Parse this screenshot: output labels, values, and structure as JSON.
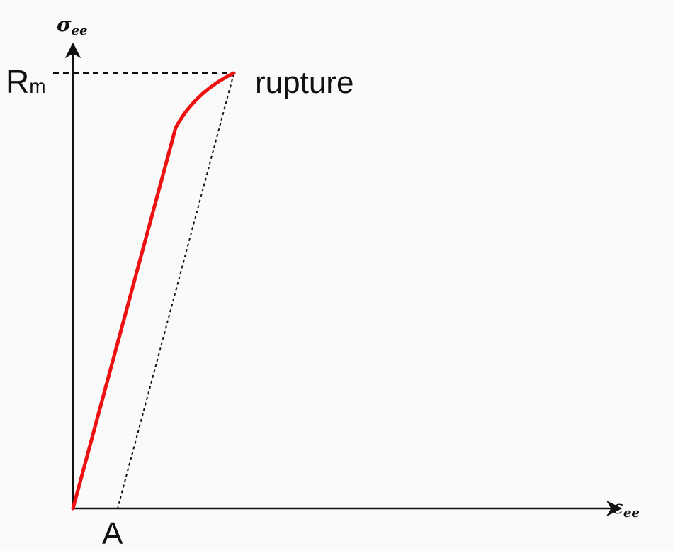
{
  "diagram": {
    "title": "",
    "y_axis": {
      "symbol": "σ",
      "subscript": "ee"
    },
    "x_axis": {
      "symbol": "ε",
      "subscript": "ee"
    },
    "rm_label": {
      "main": "R",
      "sub": "m"
    },
    "rupture_label": "rupture",
    "a_label": "A",
    "colors": {
      "curve": "#ee1111",
      "axes": "#111111",
      "dashed": "#111111",
      "background": "#fafafa"
    }
  }
}
